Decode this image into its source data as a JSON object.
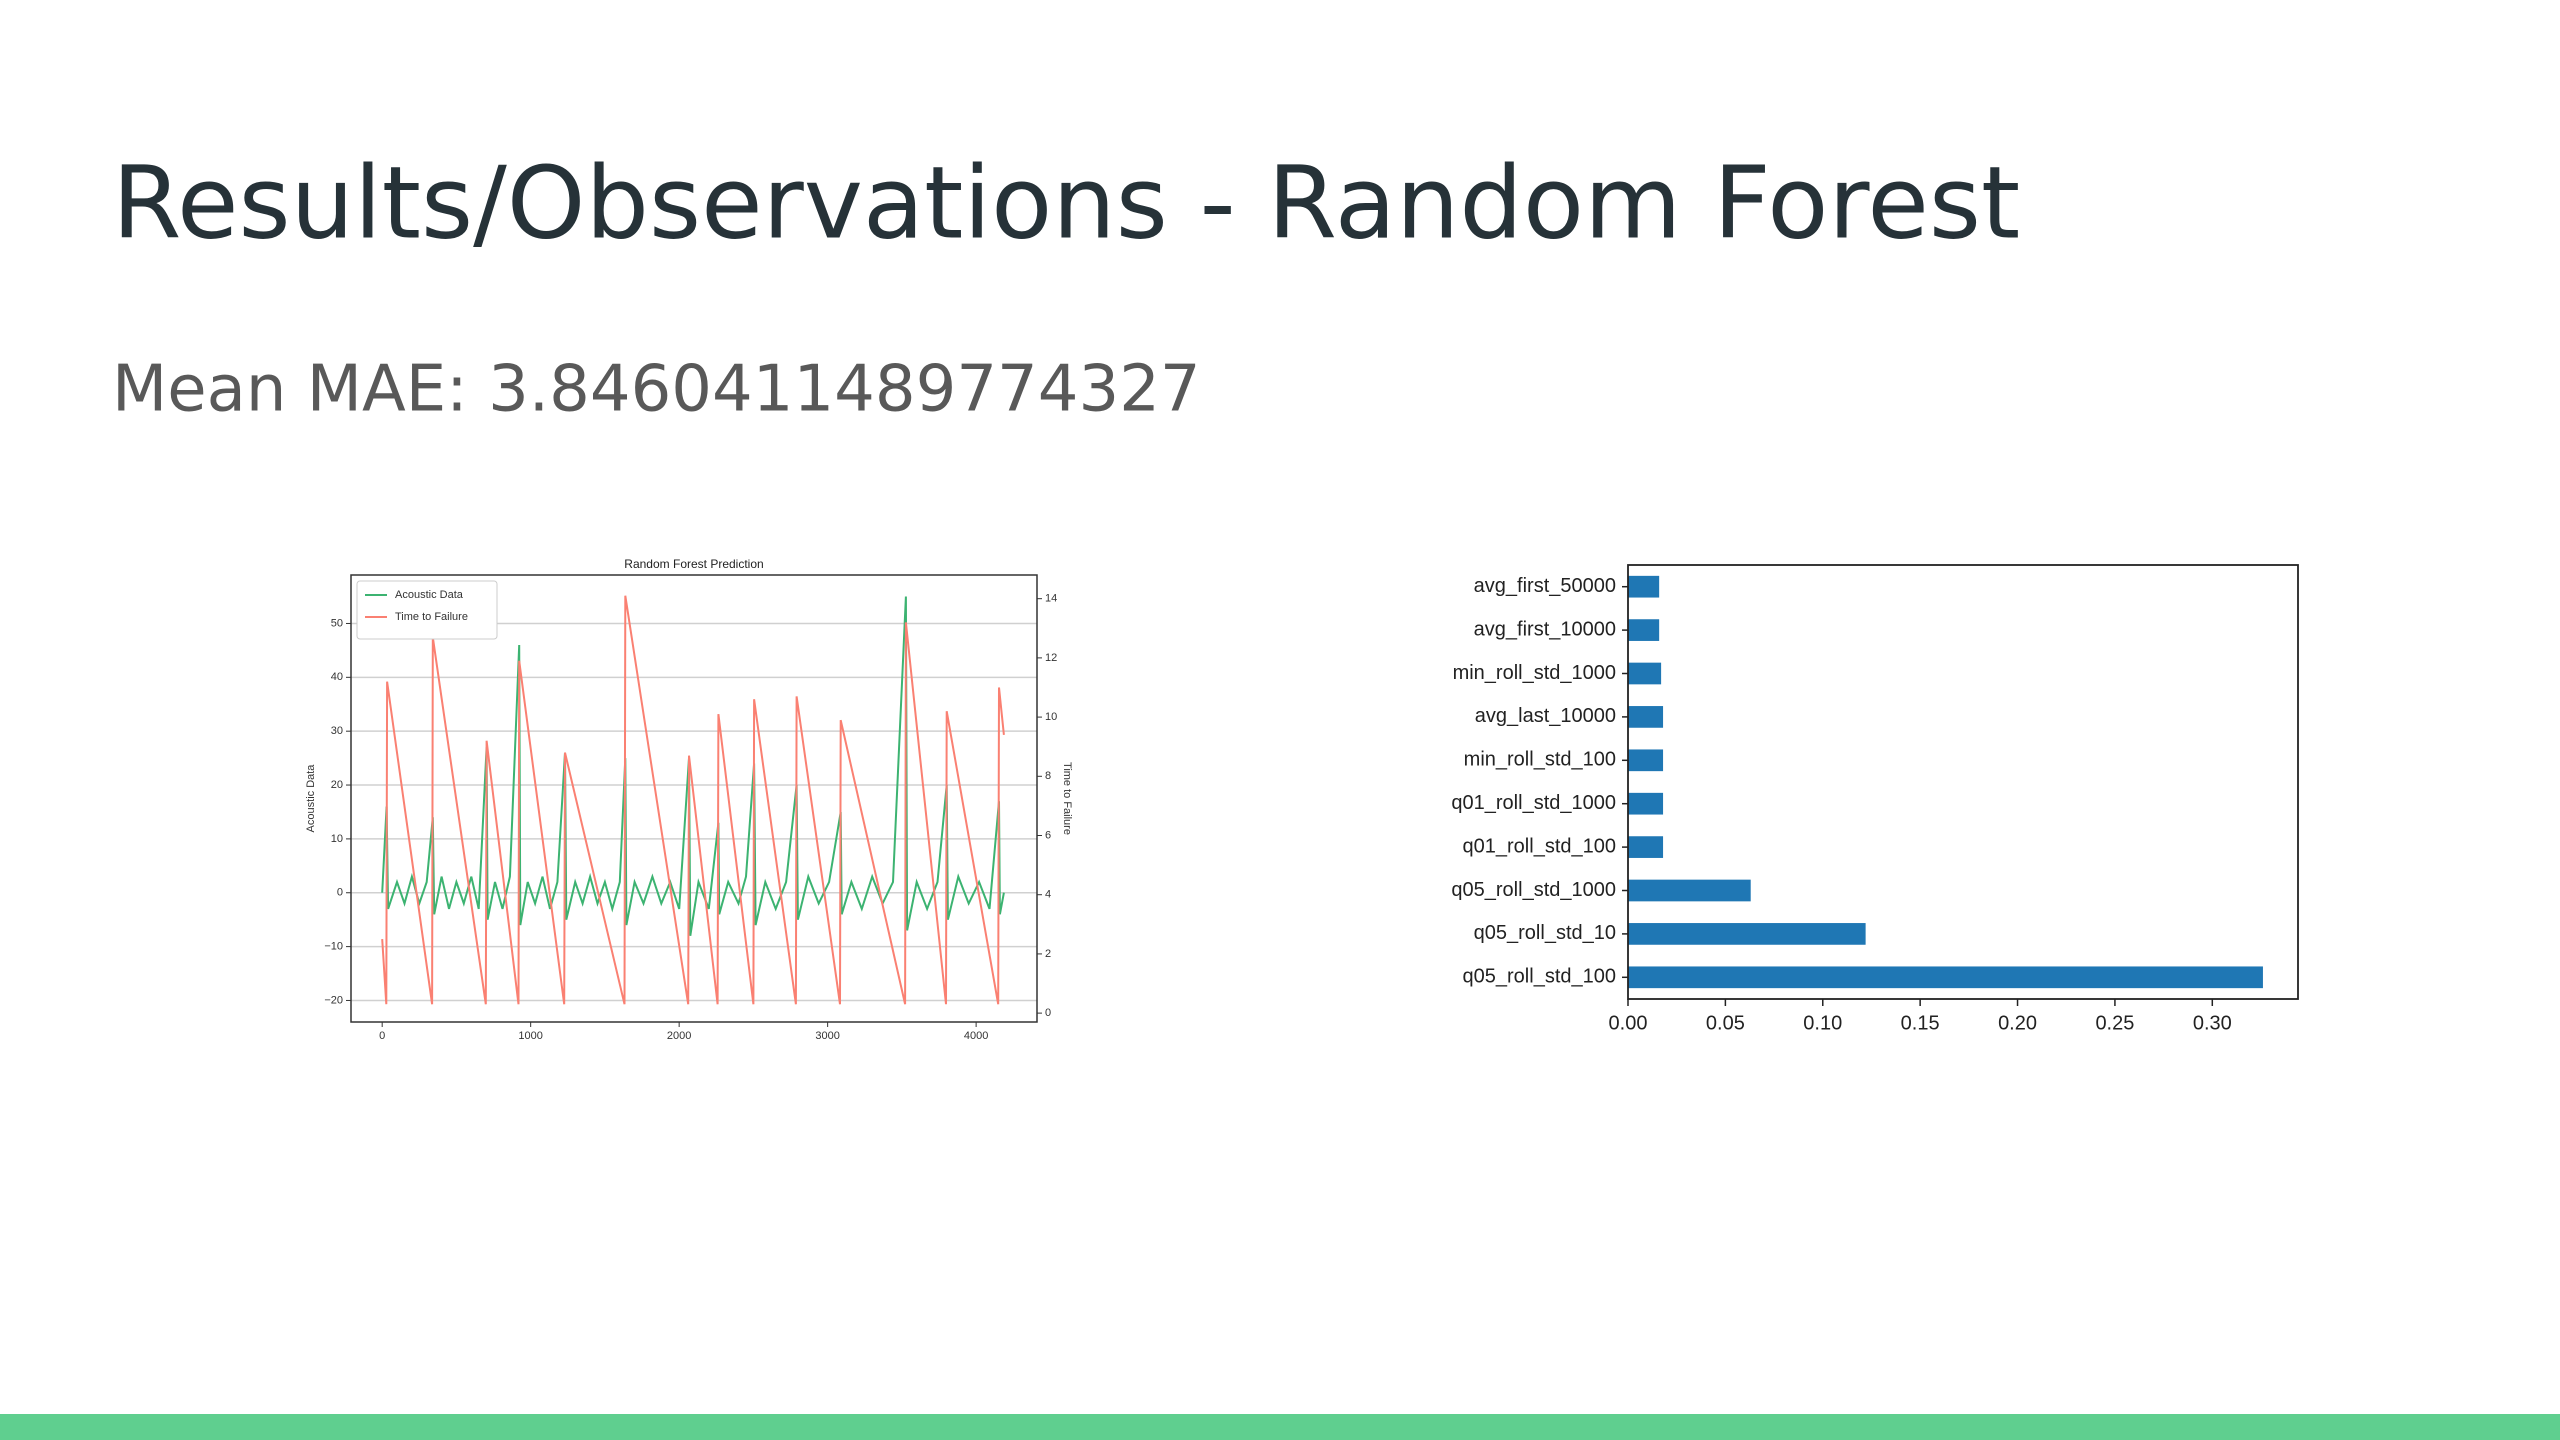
{
  "title": "Results/Observations - Random Forest",
  "subtitle": "Mean MAE: 3.8460411489774327",
  "chart_data": [
    {
      "type": "line",
      "title": "Random Forest Prediction",
      "ylabel": "Acoustic Data",
      "y2label": "Time to Failure",
      "xlim": [
        -210,
        4410
      ],
      "xticks": [
        0,
        1000,
        2000,
        3000,
        4000
      ],
      "ylim": [
        -24,
        59
      ],
      "yticks": [
        {
          "value": -20,
          "label": "−20"
        },
        {
          "value": -10,
          "label": "−10"
        },
        0,
        10,
        20,
        30,
        40,
        50
      ],
      "y2lim": [
        -0.3,
        14.8
      ],
      "y2ticks": [
        0,
        2,
        4,
        6,
        8,
        10,
        12,
        14
      ],
      "grid": true,
      "legend": "upper left",
      "series": [
        {
          "name": "Acoustic Data",
          "color": "#3cb371",
          "x": [
            0,
            30,
            40,
            100,
            150,
            200,
            250,
            300,
            341,
            350,
            400,
            450,
            500,
            550,
            600,
            650,
            703,
            710,
            760,
            810,
            860,
            923,
            930,
            980,
            1030,
            1080,
            1130,
            1180,
            1231,
            1240,
            1300,
            1350,
            1400,
            1450,
            1500,
            1550,
            1600,
            1637,
            1645,
            1700,
            1760,
            1820,
            1880,
            1940,
            2000,
            2066,
            2075,
            2130,
            2200,
            2264,
            2270,
            2330,
            2400,
            2450,
            2505,
            2515,
            2580,
            2650,
            2720,
            2791,
            2800,
            2870,
            2940,
            3010,
            3088,
            3095,
            3160,
            3230,
            3300,
            3370,
            3440,
            3527,
            3535,
            3600,
            3670,
            3740,
            3802,
            3810,
            3880,
            3950,
            4020,
            4090,
            4154,
            4160,
            4187
          ],
          "values": [
            0,
            16,
            -3,
            2,
            -2,
            3,
            -2,
            2,
            14,
            -4,
            3,
            -3,
            2,
            -2,
            3,
            -3,
            27,
            -5,
            2,
            -3,
            3,
            46,
            -6,
            2,
            -2,
            3,
            -3,
            2,
            26,
            -5,
            2,
            -2,
            3,
            -2,
            2,
            -3,
            2,
            25,
            -6,
            2,
            -2,
            3,
            -2,
            2,
            -3,
            25,
            -8,
            2,
            -3,
            13,
            -4,
            2,
            -2,
            3,
            24,
            -6,
            2,
            -3,
            2,
            20,
            -5,
            3,
            -2,
            2,
            15,
            -4,
            2,
            -3,
            3,
            -2,
            2,
            55,
            -7,
            2,
            -3,
            2,
            20,
            -5,
            3,
            -2,
            2,
            -3,
            17,
            -4,
            0
          ]
        },
        {
          "name": "Time to Failure",
          "color": "#fa8072",
          "axis": "y2",
          "x": [
            0,
            28,
            33,
            336,
            341,
            698,
            703,
            918,
            923,
            1226,
            1231,
            1632,
            1637,
            2061,
            2066,
            2259,
            2264,
            2500,
            2505,
            2786,
            2791,
            3083,
            3088,
            3522,
            3527,
            3797,
            3802,
            4149,
            4154,
            4187
          ],
          "values": [
            2.5,
            0.3,
            11.2,
            0.3,
            12.7,
            0.3,
            9.2,
            0.3,
            11.9,
            0.3,
            8.8,
            0.3,
            14.1,
            0.3,
            8.7,
            0.3,
            10.1,
            0.3,
            10.6,
            0.3,
            10.7,
            0.3,
            9.9,
            0.3,
            13.2,
            0.3,
            10.2,
            0.3,
            11.0,
            9.4
          ]
        }
      ]
    },
    {
      "type": "barh",
      "color": "#1f77b4",
      "categories": [
        "avg_first_50000",
        "avg_first_10000",
        "min_roll_std_1000",
        "avg_last_10000",
        "min_roll_std_100",
        "q01_roll_std_1000",
        "q01_roll_std_100",
        "q05_roll_std_1000",
        "q05_roll_std_10",
        "q05_roll_std_100"
      ],
      "values": [
        0.016,
        0.016,
        0.017,
        0.018,
        0.018,
        0.018,
        0.018,
        0.063,
        0.122,
        0.326
      ],
      "xlim": [
        0,
        0.344
      ],
      "xticks": [
        {
          "value": 0,
          "label": "0.00"
        },
        {
          "value": 0.05,
          "label": "0.05"
        },
        {
          "value": 0.1,
          "label": "0.10"
        },
        {
          "value": 0.15,
          "label": "0.15"
        },
        {
          "value": 0.2,
          "label": "0.20"
        },
        {
          "value": 0.25,
          "label": "0.25"
        },
        {
          "value": 0.3,
          "label": "0.30"
        }
      ]
    }
  ]
}
